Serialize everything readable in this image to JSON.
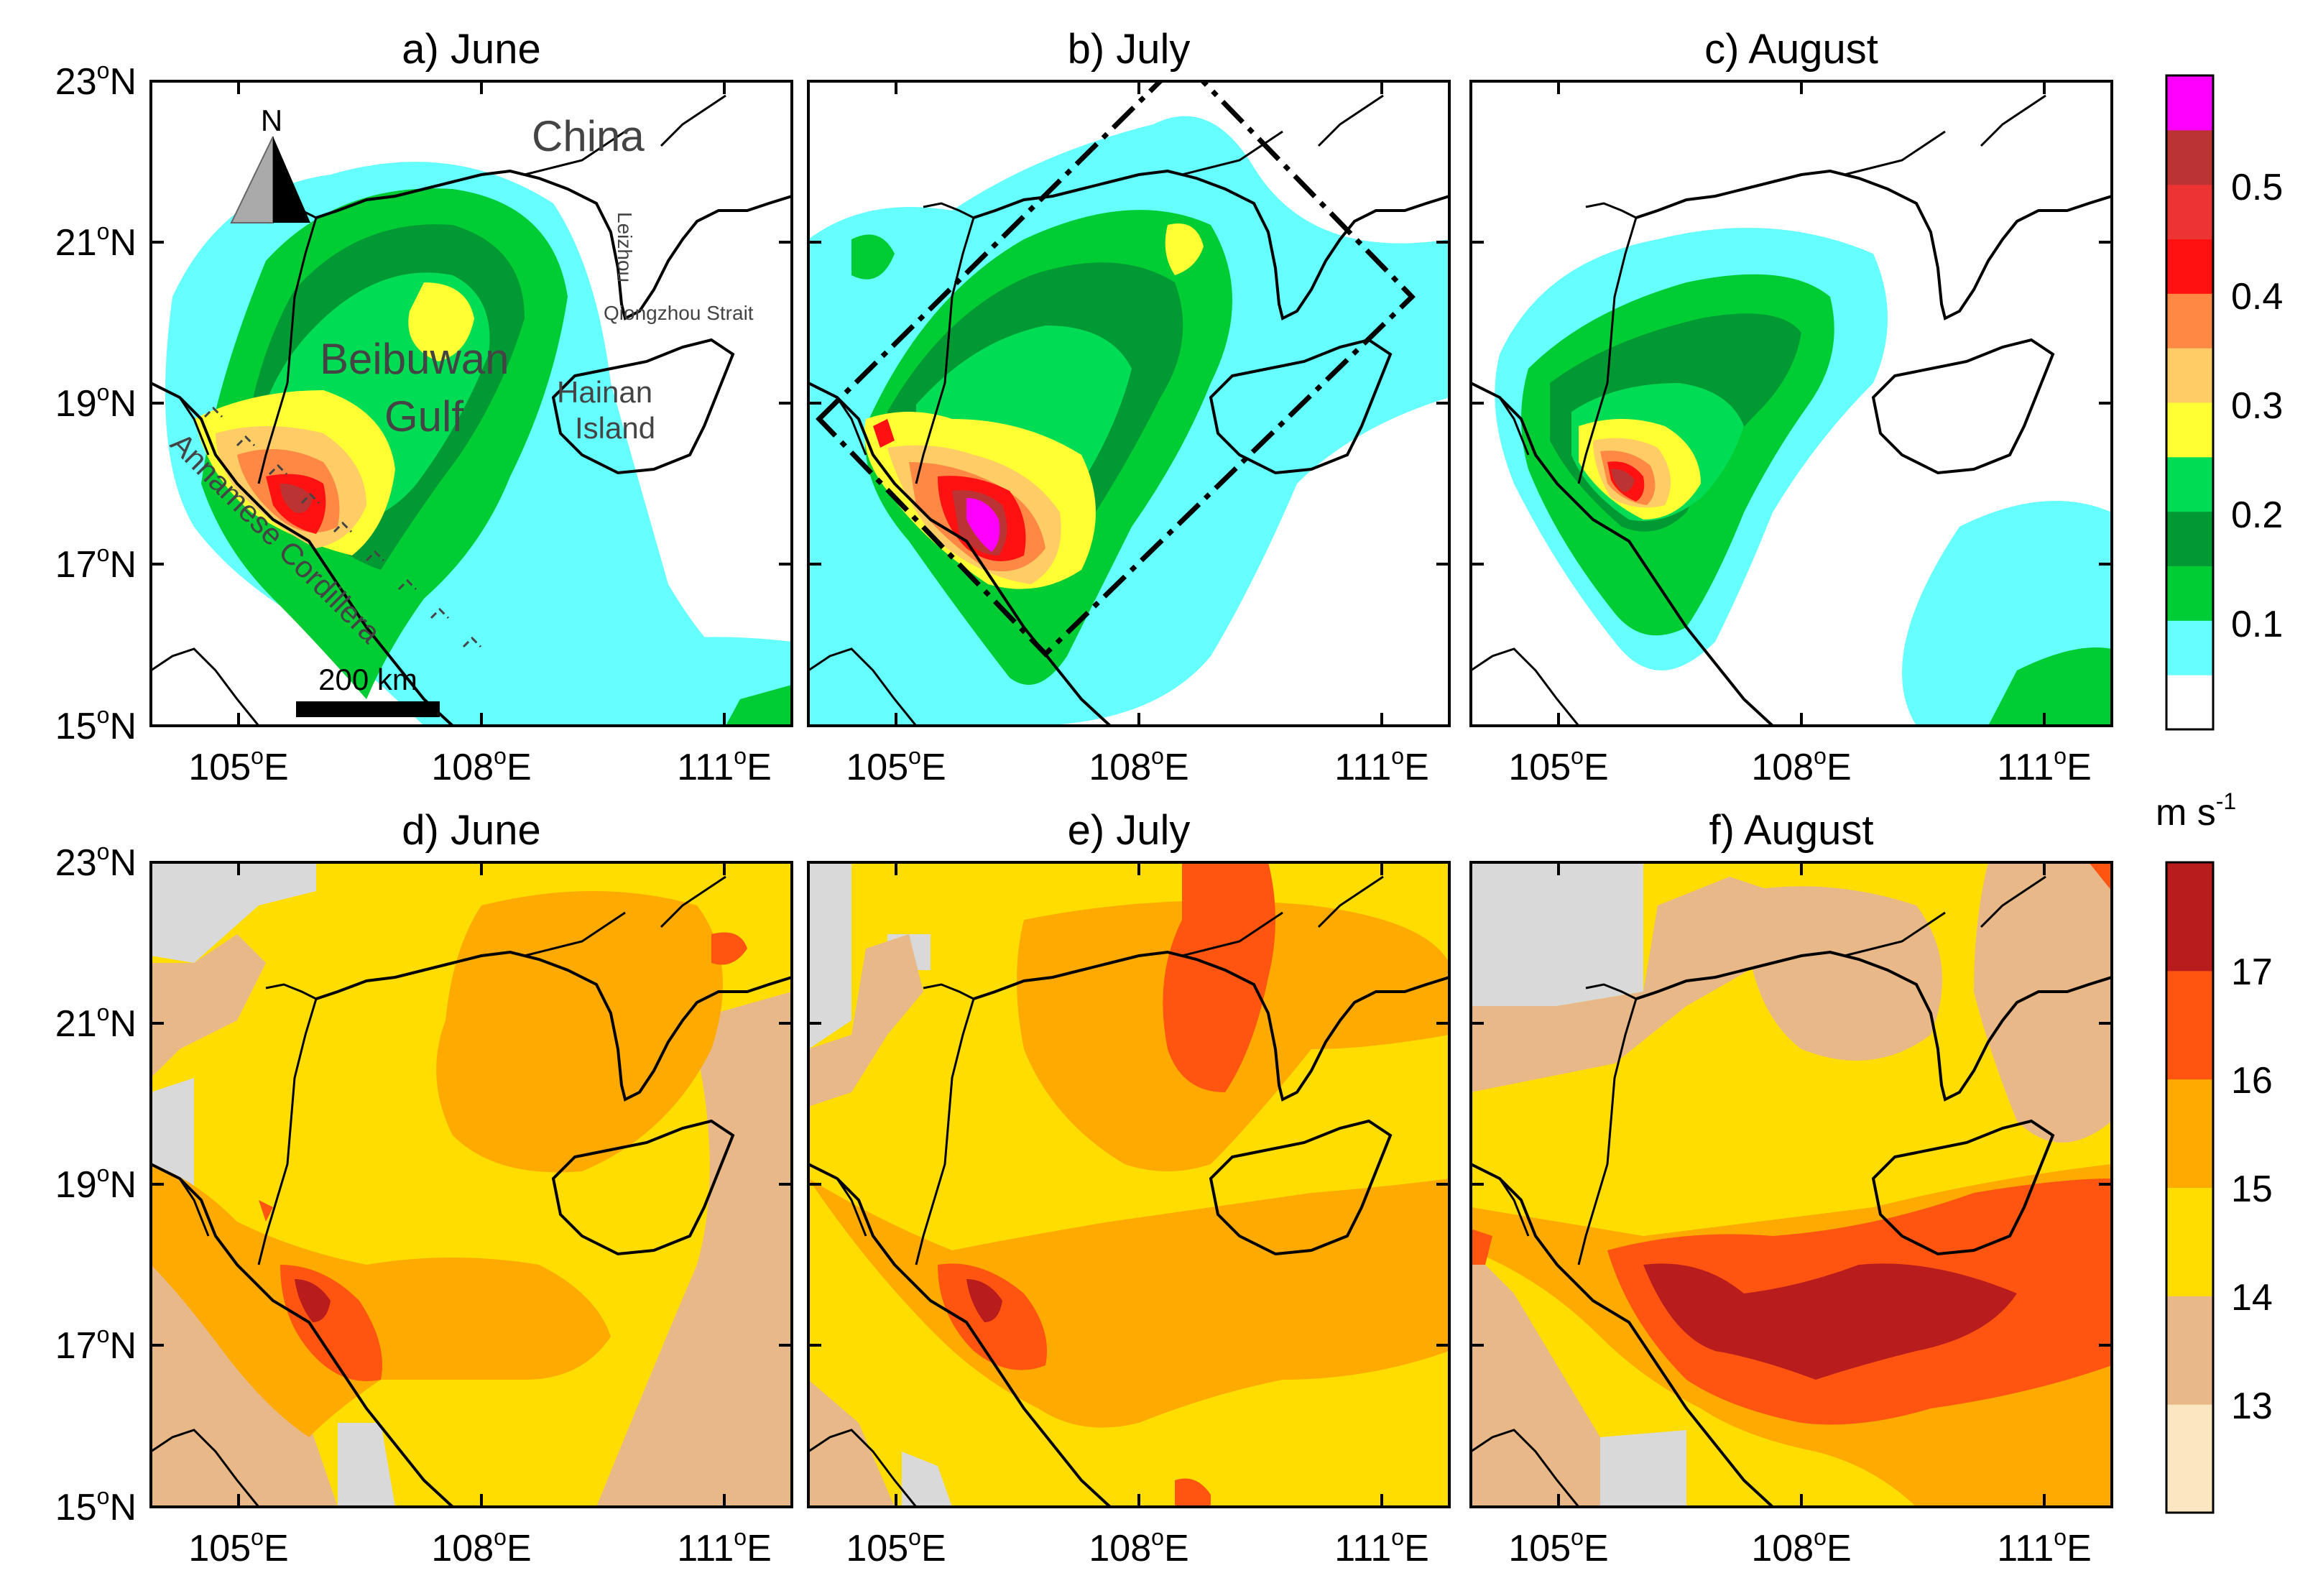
{
  "figure": {
    "top_row_panels": [
      {
        "label": "a) June",
        "month": "June",
        "variable_ref": "top_colorbar"
      },
      {
        "label": "b) July",
        "month": "July",
        "variable_ref": "top_colorbar"
      },
      {
        "label": "c) August",
        "month": "August",
        "variable_ref": "top_colorbar"
      }
    ],
    "bottom_row_panels": [
      {
        "label": "d) June",
        "month": "June",
        "variable_ref": "bottom_colorbar"
      },
      {
        "label": "e) July",
        "month": "July",
        "variable_ref": "bottom_colorbar"
      },
      {
        "label": "f) August",
        "month": "August",
        "variable_ref": "bottom_colorbar"
      }
    ],
    "lat_ticks": [
      "23",
      "21",
      "19",
      "17",
      "15"
    ],
    "lat_suffix": "N",
    "lon_ticks": [
      "105",
      "108",
      "111"
    ],
    "lon_suffix": "E",
    "degree_symbol": "o"
  },
  "annotations": {
    "china": "China",
    "gulf_line1": "Beibuwan",
    "gulf_line2": "Gulf",
    "hainan_line1": "Hainan",
    "hainan_line2": "Island",
    "leizhou": "Leizhou",
    "qiongzhou": "Qiongzhou Strait",
    "cordillera": "Annamese Cordillera",
    "scale_bar": "200 km",
    "north_arrow": "N"
  },
  "top_colorbar": {
    "tick_labels": [
      "0.5",
      "0.4",
      "0.3",
      "0.2",
      "0.1"
    ],
    "colors": [
      "#ffffff",
      "#66ffff",
      "#00cc33",
      "#009933",
      "#00dd55",
      "#ffff33",
      "#ffcc66",
      "#ff8844",
      "#ff1111",
      "#ee3333",
      "#bb3333",
      "#ff00ff"
    ]
  },
  "bottom_colorbar": {
    "unit": "m s",
    "unit_exp": "-1",
    "tick_labels": [
      "17",
      "16",
      "15",
      "14",
      "13"
    ],
    "colors": [
      "#fae6c0",
      "#e8b888",
      "#ffdd00",
      "#ffaa00",
      "#ff5511",
      "#b81c1c"
    ]
  },
  "colors": {
    "land_mask": "#d9d9d9",
    "coastline": "#000000",
    "dashed_box": "#000000"
  }
}
